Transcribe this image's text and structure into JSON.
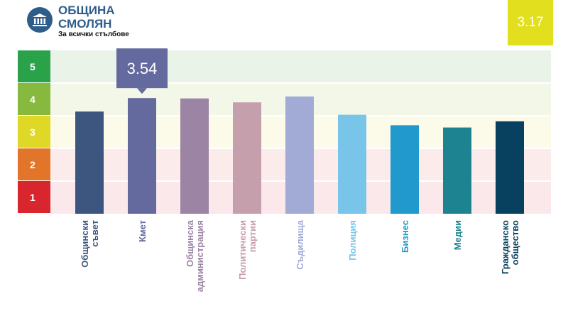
{
  "header": {
    "title_line1": "ОБЩИНА",
    "title_line2": "СМОЛЯН",
    "subtitle": "За всички стълбове"
  },
  "overall_score": "3.17",
  "highlight": {
    "category": "Кмет",
    "value": "3.54"
  },
  "colors": {
    "brand": "#2f5d8a",
    "score_box": "#e1df1e",
    "scale": [
      "#d9262e",
      "#e2752a",
      "#e0d826",
      "#87b93e",
      "#2aa24a"
    ],
    "bands": [
      "#fbe8ea",
      "#fbeceb",
      "#fcfbe9",
      "#f2f7e7",
      "#e9f3e8"
    ]
  },
  "chart_data": {
    "type": "bar",
    "title": "",
    "xlabel": "",
    "ylabel": "",
    "ylim": [
      0,
      5
    ],
    "scale_labels": [
      "1",
      "2",
      "3",
      "4",
      "5"
    ],
    "categories": [
      {
        "lines": [
          "Общински",
          "съвет"
        ],
        "color": "#3d5680"
      },
      {
        "lines": [
          "Кмет"
        ],
        "color": "#646a9e"
      },
      {
        "lines": [
          "Общинска",
          "администрация"
        ],
        "color": "#9c84a4"
      },
      {
        "lines": [
          "Политически",
          "партии"
        ],
        "color": "#c69fac"
      },
      {
        "lines": [
          "Съдилища"
        ],
        "color": "#a1abd6"
      },
      {
        "lines": [
          "Полиция"
        ],
        "color": "#78c5e9"
      },
      {
        "lines": [
          "Бизнес"
        ],
        "color": "#2199cc"
      },
      {
        "lines": [
          "Медии"
        ],
        "color": "#1d8391"
      },
      {
        "lines": [
          "Гражданско",
          "общество"
        ],
        "color": "#07415f"
      }
    ],
    "values": [
      3.13,
      3.54,
      3.53,
      3.41,
      3.59,
      3.03,
      2.71,
      2.64,
      2.83
    ]
  }
}
